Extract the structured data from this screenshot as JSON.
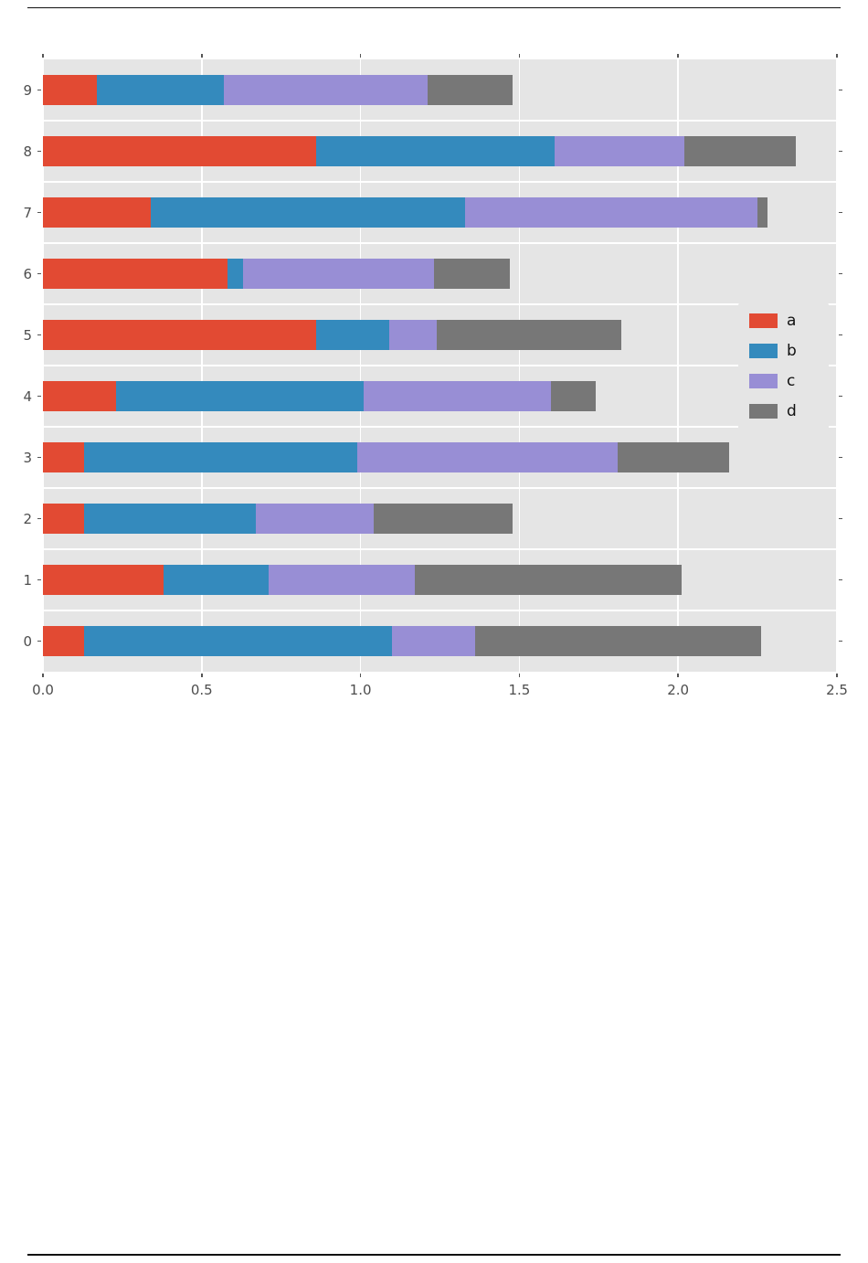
{
  "chart_data": {
    "type": "bar",
    "orientation": "horizontal",
    "stacked": true,
    "title": "",
    "xlabel": "",
    "ylabel": "",
    "categories": [
      "0",
      "1",
      "2",
      "3",
      "4",
      "5",
      "6",
      "7",
      "8",
      "9"
    ],
    "series": [
      {
        "name": "a",
        "color": "#E24A33",
        "values": [
          0.13,
          0.38,
          0.13,
          0.13,
          0.23,
          0.86,
          0.58,
          0.34,
          0.86,
          0.17
        ]
      },
      {
        "name": "b",
        "color": "#348ABD",
        "values": [
          0.97,
          0.33,
          0.54,
          0.86,
          0.78,
          0.23,
          0.05,
          0.99,
          0.75,
          0.4
        ]
      },
      {
        "name": "c",
        "color": "#988ED5",
        "values": [
          0.26,
          0.46,
          0.37,
          0.82,
          0.59,
          0.15,
          0.6,
          0.92,
          0.41,
          0.64
        ]
      },
      {
        "name": "d",
        "color": "#777777",
        "values": [
          0.9,
          0.84,
          0.44,
          0.35,
          0.14,
          0.58,
          0.24,
          0.03,
          0.35,
          0.27
        ]
      }
    ],
    "xlim": [
      0,
      2.5
    ],
    "x_ticks": [
      "0.0",
      "0.5",
      "1.0",
      "1.5",
      "2.0",
      "2.5"
    ],
    "grid": true,
    "plot_bg": "#E5E5E5",
    "grid_color": "#FFFFFF",
    "tick_color": "#555555",
    "legend": {
      "position": "center right",
      "entries": [
        "a",
        "b",
        "c",
        "d"
      ]
    }
  }
}
